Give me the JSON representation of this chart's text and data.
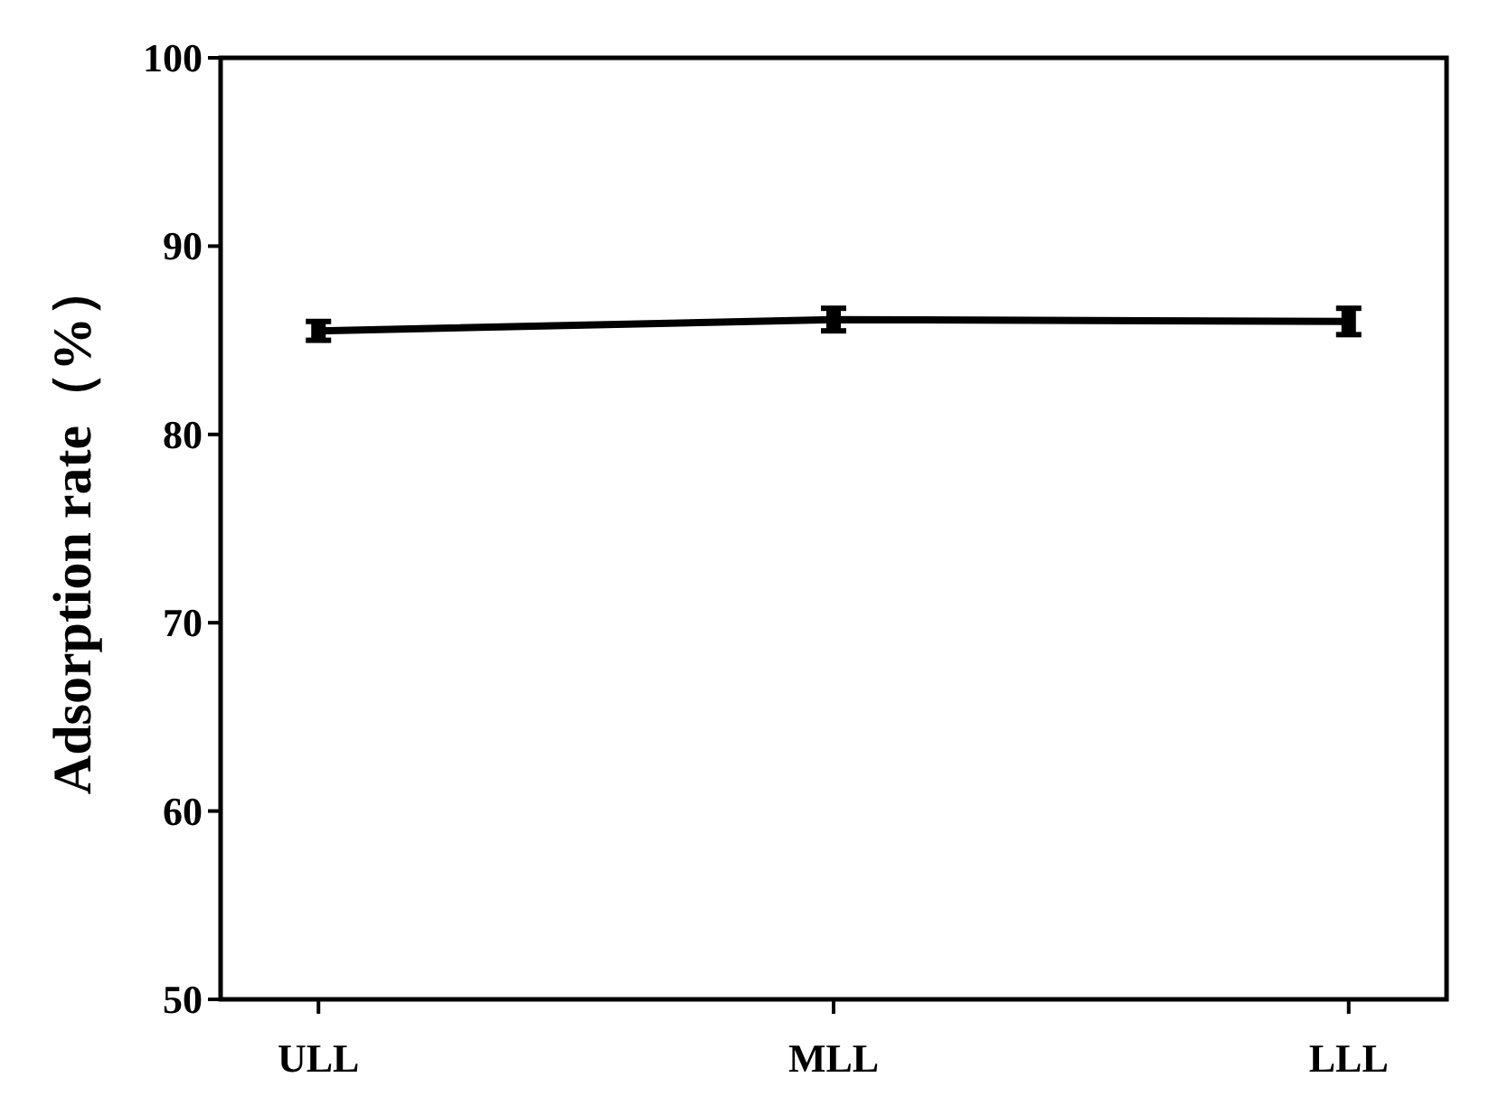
{
  "chart_data": {
    "type": "line",
    "ylabel": "Adsorption rate（%）",
    "categories": [
      "ULL",
      "MLL",
      "LLL"
    ],
    "series": [
      {
        "color": "#000000",
        "values": [
          85.5,
          86.1,
          86.0
        ],
        "errors": [
          0.5,
          0.6,
          0.7
        ]
      }
    ],
    "ylim": [
      50,
      100
    ],
    "yticks": [
      50,
      60,
      70,
      80,
      90,
      100
    ],
    "grid": false,
    "marker": "none",
    "line_style": "solid"
  }
}
